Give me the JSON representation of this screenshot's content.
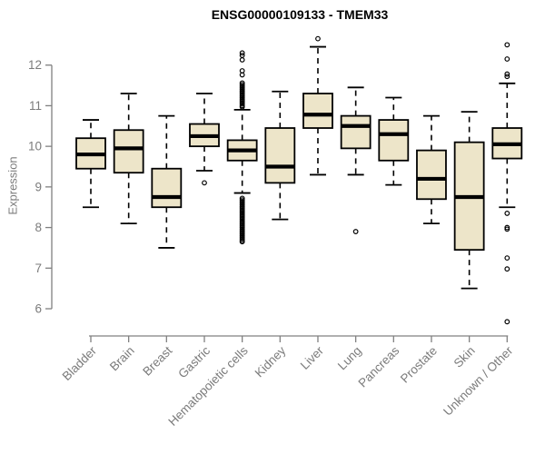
{
  "page": {
    "background": "#ffffff"
  },
  "chart_data": {
    "type": "boxplot",
    "title": "ENSG00000109133 - TMEM33",
    "ylabel": "Expression",
    "xlabel": "",
    "ylim": [
      5.6,
      12.7
    ],
    "yticks": [
      6,
      7,
      8,
      9,
      10,
      11,
      12
    ],
    "grid": false,
    "legend": "none",
    "colors": {
      "box_fill": "#ede5c9",
      "box_border": "#000000",
      "median": "#000000",
      "whisker": "#000000",
      "axis_line": "#808080",
      "axis_text": "#7b7b7b",
      "title_text": "#000000"
    },
    "categories": [
      "Bladder",
      "Brain",
      "Breast",
      "Gastric",
      "Hematopoietic cells",
      "Kidney",
      "Liver",
      "Lung",
      "Pancreas",
      "Prostate",
      "Skin",
      "Unknown / Other"
    ],
    "boxes": [
      {
        "label": "Bladder",
        "whisker_low": 8.5,
        "q1": 9.45,
        "median": 9.8,
        "q3": 10.2,
        "whisker_high": 10.65,
        "outliers": []
      },
      {
        "label": "Brain",
        "whisker_low": 8.1,
        "q1": 9.35,
        "median": 9.95,
        "q3": 10.4,
        "whisker_high": 11.3,
        "outliers": []
      },
      {
        "label": "Breast",
        "whisker_low": 7.5,
        "q1": 8.5,
        "median": 8.75,
        "q3": 9.45,
        "whisker_high": 10.75,
        "outliers": []
      },
      {
        "label": "Gastric",
        "whisker_low": 9.4,
        "q1": 10.0,
        "median": 10.25,
        "q3": 10.55,
        "whisker_high": 11.3,
        "outliers": [
          9.1
        ]
      },
      {
        "label": "Hematopoietic cells",
        "whisker_low": 8.85,
        "q1": 9.65,
        "median": 9.9,
        "q3": 10.15,
        "whisker_high": 10.9,
        "outliers": [
          12.3,
          12.24,
          12.13,
          11.86,
          11.76,
          11.56,
          11.52,
          11.48,
          11.44,
          11.4,
          11.36,
          11.32,
          11.28,
          11.24,
          11.2,
          11.16,
          11.12,
          11.08,
          11.04,
          11.0,
          10.97,
          8.72,
          8.68,
          8.64,
          8.6,
          8.56,
          8.52,
          8.48,
          8.44,
          8.4,
          8.36,
          8.32,
          8.28,
          8.24,
          8.2,
          8.16,
          8.12,
          8.08,
          8.04,
          8.0,
          7.96,
          7.92,
          7.88,
          7.84,
          7.8,
          7.76,
          7.72,
          7.68,
          7.65
        ]
      },
      {
        "label": "Kidney",
        "whisker_low": 8.2,
        "q1": 9.1,
        "median": 9.5,
        "q3": 10.45,
        "whisker_high": 11.35,
        "outliers": []
      },
      {
        "label": "Liver",
        "whisker_low": 9.3,
        "q1": 10.45,
        "median": 10.78,
        "q3": 11.3,
        "whisker_high": 12.45,
        "outliers": [
          12.65
        ]
      },
      {
        "label": "Lung",
        "whisker_low": 9.3,
        "q1": 9.95,
        "median": 10.5,
        "q3": 10.75,
        "whisker_high": 11.45,
        "outliers": [
          7.9
        ]
      },
      {
        "label": "Pancreas",
        "whisker_low": 9.05,
        "q1": 9.65,
        "median": 10.3,
        "q3": 10.65,
        "whisker_high": 11.2,
        "outliers": []
      },
      {
        "label": "Prostate",
        "whisker_low": 8.1,
        "q1": 8.7,
        "median": 9.2,
        "q3": 9.9,
        "whisker_high": 10.75,
        "outliers": []
      },
      {
        "label": "Skin",
        "whisker_low": 6.5,
        "q1": 7.45,
        "median": 8.75,
        "q3": 10.1,
        "whisker_high": 10.85,
        "outliers": []
      },
      {
        "label": "Unknown / Other",
        "whisker_low": 8.5,
        "q1": 9.7,
        "median": 10.05,
        "q3": 10.45,
        "whisker_high": 11.55,
        "outliers": [
          12.5,
          12.15,
          11.78,
          11.72,
          8.35,
          8.0,
          7.96,
          7.25,
          6.98,
          5.68
        ]
      }
    ]
  }
}
